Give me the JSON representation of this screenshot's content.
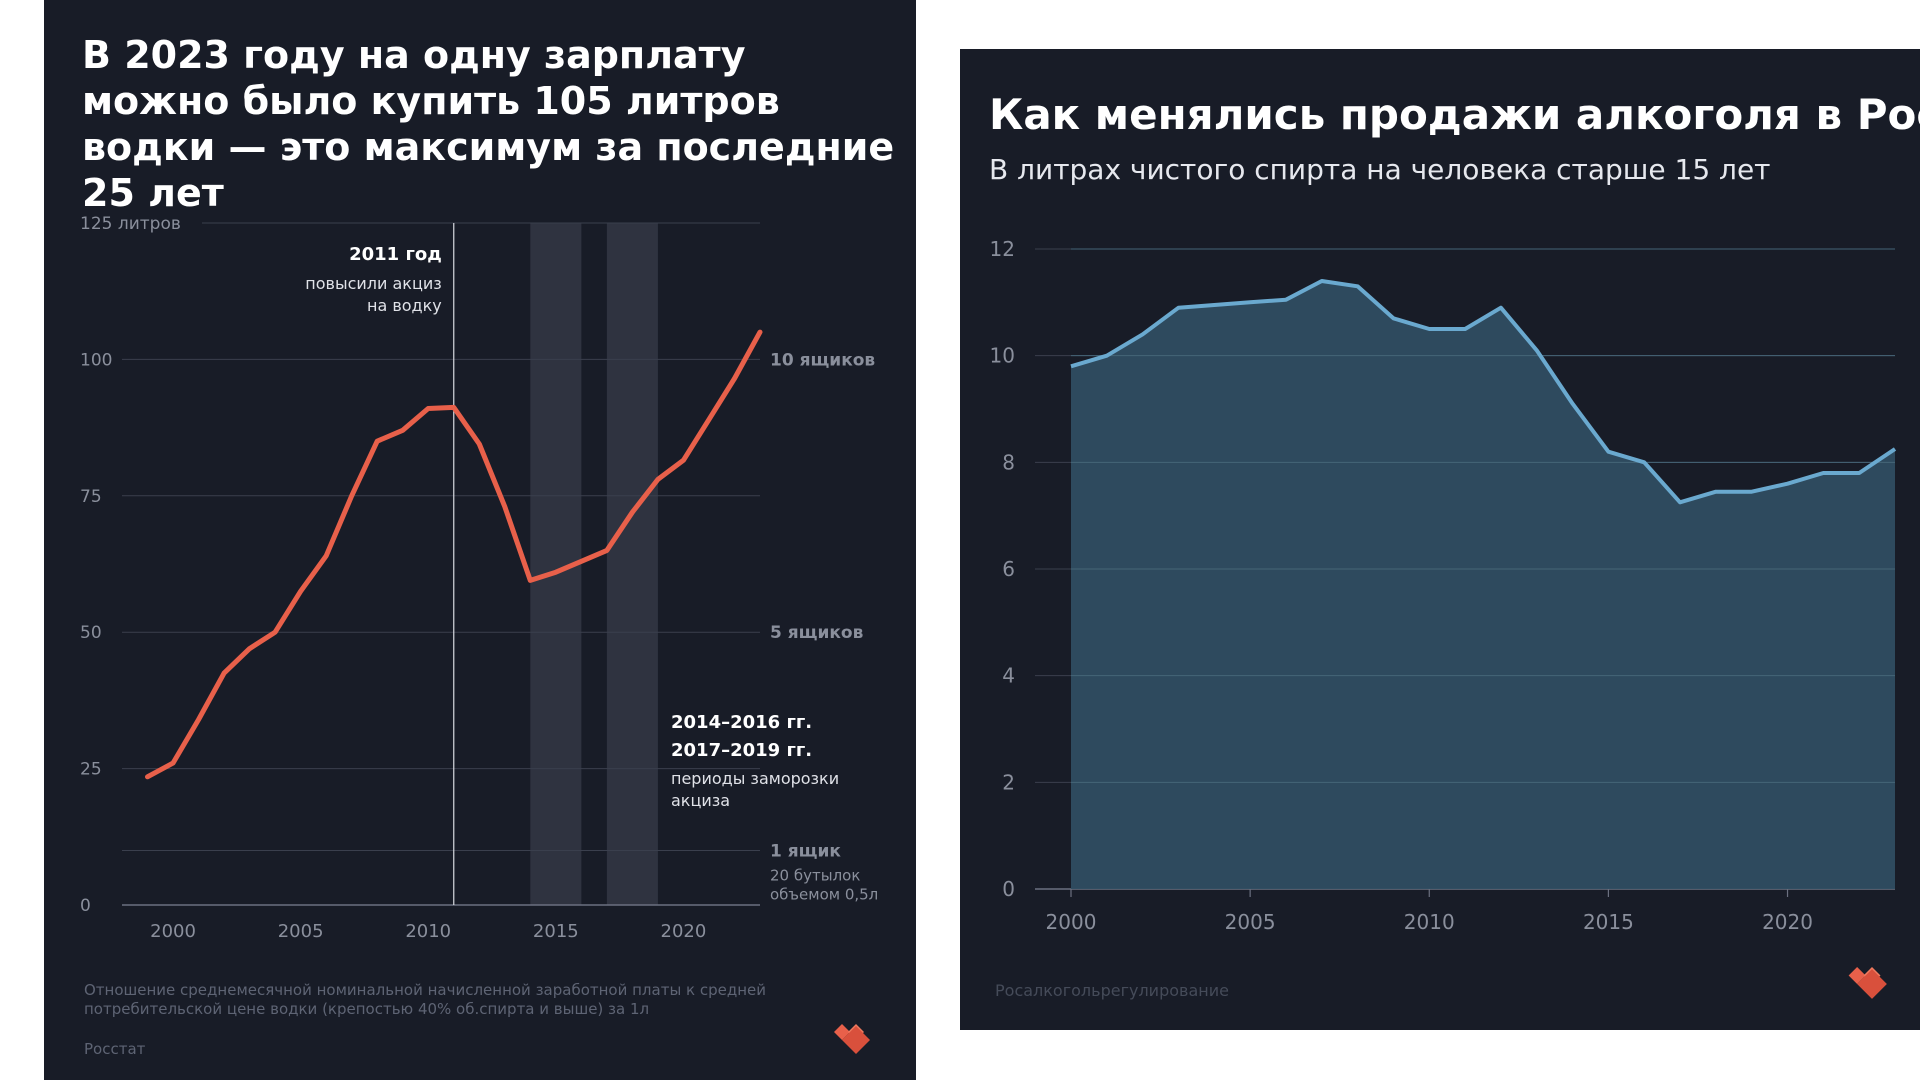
{
  "charts": {
    "left": {
      "title": "В 2023 году на одну зарплату можно было купить 105 литров водки — это максимум за последние 25 лет",
      "note": "Отношение среднемесячной номинальной начисленной заработной платы к средней потребительской цене водки (крепостью 40% об.спирта и выше) за 1л",
      "source": "Росстат"
    },
    "right": {
      "title": "Как менялись продажи алкоголя в России",
      "subtitle": "В литрах чистого спирта на человека старше 15 лет",
      "source": "Росалкогольрегулирование"
    }
  },
  "chart_data": [
    {
      "type": "line",
      "title": "В 2023 году на одну зарплату можно было купить 105 литров водки — это максимум за последние 25 лет",
      "ylim": [
        0,
        125
      ],
      "xlim": [
        1998,
        2023
      ],
      "y_tick_values": [
        0,
        25,
        50,
        75,
        100
      ],
      "y_tick_labels": [
        "0",
        "25",
        "50",
        "75",
        "100"
      ],
      "y_top_label": "125 литров",
      "x_ticks": [
        2000,
        2005,
        2010,
        2015,
        2020
      ],
      "grid": true,
      "line_color": "#e8604a",
      "x": [
        1999,
        2000,
        2001,
        2002,
        2003,
        2004,
        2005,
        2006,
        2007,
        2008,
        2009,
        2010,
        2011,
        2012,
        2013,
        2014,
        2015,
        2016,
        2017,
        2018,
        2019,
        2020,
        2021,
        2022,
        2023
      ],
      "values": [
        23.5,
        26,
        34,
        42.5,
        47,
        50,
        57.5,
        64,
        75,
        85,
        87,
        91,
        91.2,
        84.5,
        73,
        59.5,
        61,
        63,
        65,
        72,
        78,
        81.5,
        89,
        96.5,
        105
      ],
      "right_axis_labels": [
        {
          "value": 100,
          "text": "10 ящиков"
        },
        {
          "value": 50,
          "text": "5 ящиков"
        },
        {
          "value": 10,
          "text": "1 ящик",
          "subtext": [
            "20 бутылок",
            "объемом 0,5л"
          ]
        }
      ],
      "shaded_periods": [
        [
          2014,
          2016
        ],
        [
          2017,
          2019
        ]
      ],
      "vertical_marker": {
        "x": 2011,
        "title": "2011 год",
        "lines": [
          "повысили акциз",
          "на водку"
        ]
      },
      "period_annotation": {
        "titles": [
          "2014–2016 гг.",
          "2017–2019 гг."
        ],
        "lines": [
          "периоды заморозки",
          "акциза"
        ]
      }
    },
    {
      "type": "area",
      "title": "Как менялись продажи алкоголя в России",
      "subtitle": "В литрах чистого спирта на человека старше 15 лет",
      "ylim": [
        0,
        12
      ],
      "xlim": [
        2000,
        2023
      ],
      "y_ticks": [
        0,
        2,
        4,
        6,
        8,
        10,
        12
      ],
      "x_ticks": [
        2000,
        2005,
        2010,
        2015,
        2020
      ],
      "grid": true,
      "line_color": "#6aa9cf",
      "fill_color": "#2f4d61",
      "x": [
        2000,
        2001,
        2002,
        2003,
        2004,
        2005,
        2006,
        2007,
        2008,
        2009,
        2010,
        2011,
        2012,
        2013,
        2014,
        2015,
        2016,
        2017,
        2018,
        2019,
        2020,
        2021,
        2022,
        2023
      ],
      "values": [
        9.8,
        10.0,
        10.4,
        10.9,
        10.95,
        11.0,
        11.05,
        11.4,
        11.3,
        10.7,
        10.5,
        10.5,
        10.9,
        10.1,
        9.1,
        8.2,
        8.0,
        7.25,
        7.45,
        7.45,
        7.6,
        7.8,
        7.8,
        8.25
      ]
    }
  ]
}
